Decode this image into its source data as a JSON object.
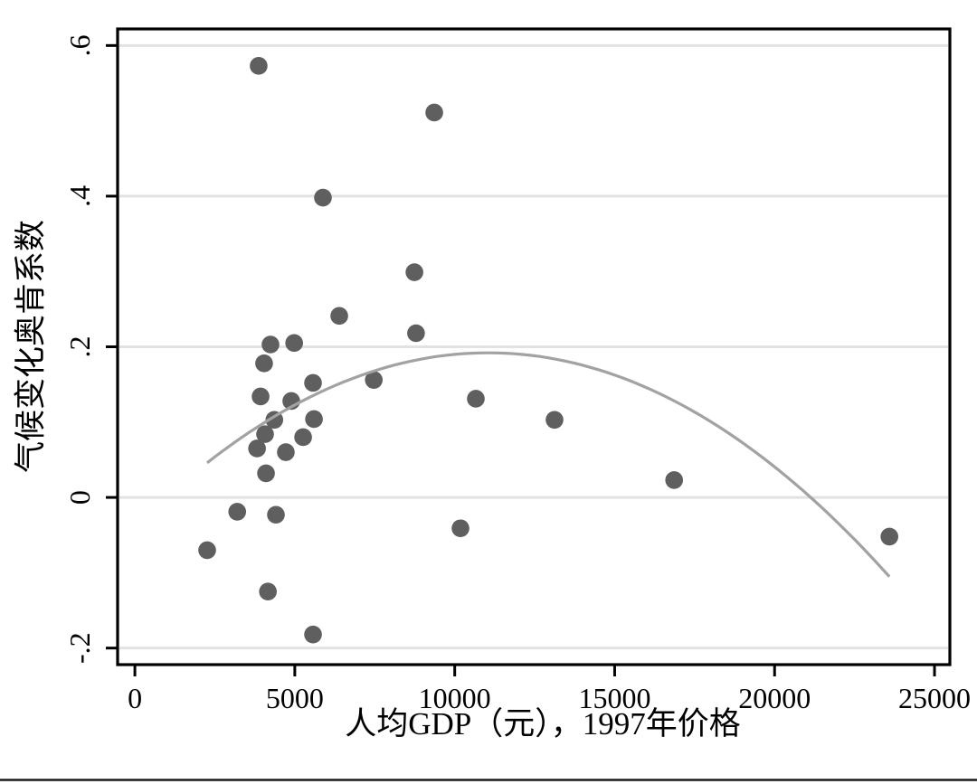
{
  "figure": {
    "kind": "stata-style scatter plot with quadratic fit",
    "background_color": "#ffffff"
  },
  "chart_data": {
    "type": "scatter",
    "title": "",
    "xlabel": "人均GDP（元），1997年价格",
    "ylabel": "气候变化奥肯系数",
    "x_ticks": [
      0,
      5000,
      10000,
      15000,
      20000,
      25000
    ],
    "x_tick_labels": [
      "0",
      "5000",
      "10000",
      "15000",
      "20000",
      "25000"
    ],
    "y_ticks": [
      -0.2,
      0,
      0.2,
      0.4,
      0.6
    ],
    "y_tick_labels": [
      "-.2",
      "0",
      ".2",
      ".4",
      ".6"
    ],
    "xlim": [
      -540,
      25480
    ],
    "ylim": [
      -0.222,
      0.622
    ],
    "grid": "horizontal-only",
    "legend_position": "none",
    "points": [
      [
        3870,
        0.573
      ],
      [
        9360,
        0.511
      ],
      [
        5880,
        0.398
      ],
      [
        8740,
        0.299
      ],
      [
        6390,
        0.241
      ],
      [
        8790,
        0.218
      ],
      [
        4240,
        0.203
      ],
      [
        4980,
        0.205
      ],
      [
        4040,
        0.178
      ],
      [
        5570,
        0.152
      ],
      [
        7470,
        0.156
      ],
      [
        3930,
        0.134
      ],
      [
        4890,
        0.128
      ],
      [
        10660,
        0.131
      ],
      [
        4360,
        0.103
      ],
      [
        5600,
        0.104
      ],
      [
        4070,
        0.084
      ],
      [
        5260,
        0.08
      ],
      [
        3820,
        0.065
      ],
      [
        4720,
        0.06
      ],
      [
        4100,
        0.032
      ],
      [
        3200,
        -0.019
      ],
      [
        4410,
        -0.023
      ],
      [
        10180,
        -0.041
      ],
      [
        2260,
        -0.07
      ],
      [
        4160,
        -0.125
      ],
      [
        5570,
        -0.182
      ],
      [
        13120,
        0.103
      ],
      [
        16860,
        0.023
      ],
      [
        23590,
        -0.052
      ]
    ],
    "fit_curve": {
      "type": "quadratic",
      "vertex_x": 11050,
      "vertex_y": 0.192,
      "a": -1.89e-09,
      "x_start": 2260,
      "x_end": 23590
    },
    "colors": {
      "point": "#5f5f5f",
      "fit_line": "#a2a2a2",
      "gridline": "#e2e2e2",
      "axis": "#000000",
      "bottom_rule": "#1a1a1a"
    }
  }
}
